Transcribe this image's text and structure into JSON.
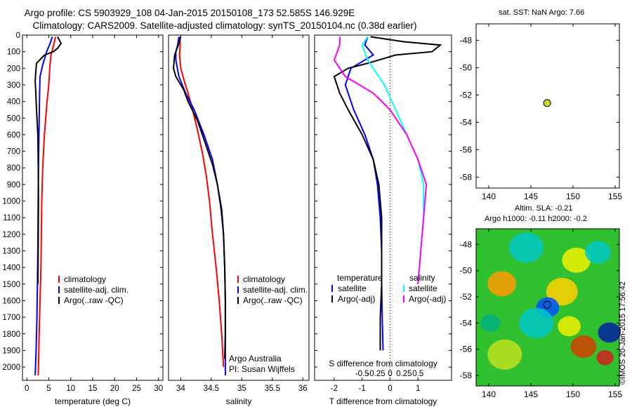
{
  "header": {
    "title_line1": "Argo profile: CS 5903929_108 04-Jan-2015 20150108_173 52.585S 146.929E",
    "title_line2": "Climatology: CARS2009. Satellite-adjusted climatology: synTS_20150104.nc (0.38d earlier)"
  },
  "colors": {
    "climatology": "#ff0000",
    "satellite": "#0000ff",
    "argo": "#000000",
    "sat_s": "#00ffff",
    "argo_s": "#ff00ff",
    "float_marker": "#ccdd22"
  },
  "chart_data": [
    {
      "id": "temperature",
      "type": "line",
      "xlabel": "temperature (deg C)",
      "ylabel": "",
      "xlim": [
        -1,
        31
      ],
      "ylim": [
        2080,
        0
      ],
      "y_reversed": true,
      "xticks": [
        0,
        5,
        10,
        15,
        20,
        25,
        30
      ],
      "yticks": [
        0,
        100,
        200,
        300,
        400,
        500,
        600,
        700,
        800,
        900,
        1000,
        1100,
        1200,
        1300,
        1400,
        1500,
        1600,
        1700,
        1800,
        1900,
        2000
      ],
      "legend": [
        "climatology",
        "satellite-adj. clim.",
        "Argo(..raw -QC)"
      ],
      "series": [
        {
          "name": "climatology",
          "color": "#ff0000",
          "points": [
            [
              6.5,
              10
            ],
            [
              6.2,
              50
            ],
            [
              5.5,
              120
            ],
            [
              5.2,
              200
            ],
            [
              5.0,
              300
            ],
            [
              4.6,
              400
            ],
            [
              4.3,
              500
            ],
            [
              4.0,
              600
            ],
            [
              3.8,
              700
            ],
            [
              3.6,
              800
            ],
            [
              3.5,
              900
            ],
            [
              3.4,
              1000
            ],
            [
              3.3,
              1200
            ],
            [
              3.2,
              1400
            ],
            [
              3.0,
              1600
            ],
            [
              2.8,
              1800
            ],
            [
              2.6,
              2050
            ]
          ]
        },
        {
          "name": "satellite-adj. clim.",
          "color": "#0000ff",
          "points": [
            [
              5.8,
              10
            ],
            [
              5.3,
              50
            ],
            [
              4.5,
              100
            ],
            [
              3.6,
              180
            ],
            [
              3.0,
              250
            ],
            [
              2.9,
              350
            ],
            [
              2.8,
              500
            ],
            [
              2.7,
              700
            ],
            [
              2.6,
              900
            ],
            [
              2.55,
              1100
            ],
            [
              2.5,
              1300
            ],
            [
              2.4,
              1500
            ],
            [
              2.3,
              1700
            ],
            [
              2.1,
              1900
            ],
            [
              1.9,
              2050
            ]
          ]
        },
        {
          "name": "Argo(..raw -QC)",
          "color": "#000000",
          "points": [
            [
              7.0,
              10
            ],
            [
              7.8,
              50
            ],
            [
              7.0,
              80
            ],
            [
              6.0,
              100
            ],
            [
              4.0,
              120
            ],
            [
              2.2,
              170
            ],
            [
              2.0,
              230
            ],
            [
              1.9,
              280
            ],
            [
              2.0,
              330
            ],
            [
              2.2,
              450
            ],
            [
              2.5,
              600
            ],
            [
              2.6,
              800
            ],
            [
              2.65,
              1000
            ],
            [
              2.6,
              1200
            ],
            [
              2.55,
              1400
            ],
            [
              2.5,
              1500
            ]
          ]
        }
      ]
    },
    {
      "id": "salinity",
      "type": "line",
      "xlabel": "salinity",
      "ylabel": "",
      "xlim": [
        33.8,
        36.1
      ],
      "ylim": [
        2080,
        0
      ],
      "y_reversed": true,
      "xticks": [
        34,
        34.5,
        35,
        35.5,
        36
      ],
      "xticklabels": [
        "34",
        "34.5",
        "35",
        "35.5",
        "36"
      ],
      "legend": [
        "climatology",
        "satellite-adj. clim.",
        "Argo(..raw -QC)"
      ],
      "annotations": [
        "Argo Australia",
        "PI: Susan Wijffels"
      ],
      "series": [
        {
          "name": "climatology",
          "color": "#ff0000",
          "points": [
            [
              33.99,
              10
            ],
            [
              33.99,
              60
            ],
            [
              33.98,
              120
            ],
            [
              34.0,
              200
            ],
            [
              34.06,
              280
            ],
            [
              34.16,
              400
            ],
            [
              34.26,
              550
            ],
            [
              34.35,
              700
            ],
            [
              34.42,
              850
            ],
            [
              34.47,
              1000
            ],
            [
              34.52,
              1200
            ],
            [
              34.58,
              1400
            ],
            [
              34.63,
              1600
            ],
            [
              34.67,
              1800
            ],
            [
              34.7,
              2000
            ]
          ]
        },
        {
          "name": "satellite-adj. clim.",
          "color": "#0000ff",
          "points": [
            [
              33.97,
              10
            ],
            [
              33.95,
              60
            ],
            [
              33.92,
              100
            ],
            [
              33.92,
              150
            ],
            [
              33.97,
              250
            ],
            [
              34.08,
              350
            ],
            [
              34.22,
              450
            ],
            [
              34.38,
              600
            ],
            [
              34.52,
              750
            ],
            [
              34.6,
              900
            ],
            [
              34.66,
              1050
            ],
            [
              34.7,
              1200
            ],
            [
              34.72,
              1400
            ],
            [
              34.73,
              1600
            ],
            [
              34.73,
              1800
            ],
            [
              34.73,
              2050
            ]
          ]
        },
        {
          "name": "Argo(..raw -QC)",
          "color": "#000000",
          "points": [
            [
              34.0,
              10
            ],
            [
              33.96,
              60
            ],
            [
              33.9,
              120
            ],
            [
              33.88,
              200
            ],
            [
              33.92,
              250
            ],
            [
              34.05,
              330
            ],
            [
              34.12,
              400
            ],
            [
              34.28,
              520
            ],
            [
              34.4,
              650
            ],
            [
              34.52,
              780
            ],
            [
              34.6,
              900
            ],
            [
              34.67,
              1050
            ],
            [
              34.7,
              1200
            ],
            [
              34.72,
              1400
            ],
            [
              34.73,
              1600
            ],
            [
              34.73,
              1800
            ],
            [
              34.72,
              1950
            ]
          ]
        }
      ]
    },
    {
      "id": "differences",
      "type": "line",
      "xlabel": "T difference from climatology",
      "xlabel_top": "S difference from climatology",
      "xlim": [
        -2.7,
        2.2
      ],
      "ylim": [
        2080,
        0
      ],
      "y_reversed": true,
      "xticks": [
        -2,
        -1,
        0,
        1
      ],
      "xticklabels": [
        "-2",
        "-1",
        "0",
        "1"
      ],
      "s_ticklabels": [
        "-0.5",
        "-0.25",
        "0",
        "0.25",
        "0.5"
      ],
      "legend_left_title": "temperature",
      "legend_left": [
        "satellite",
        "Argo(-adj)"
      ],
      "legend_right_title": "salinity",
      "legend_right": [
        "satellite",
        "Argo(-adj)"
      ],
      "series": [
        {
          "name": "satellite",
          "group": "temperature",
          "color": "#0000ff",
          "points": [
            [
              -0.8,
              10
            ],
            [
              -0.9,
              60
            ],
            [
              -0.6,
              120
            ],
            [
              -1.4,
              200
            ],
            [
              -1.6,
              300
            ],
            [
              -1.3,
              450
            ],
            [
              -0.9,
              600
            ],
            [
              -0.6,
              750
            ],
            [
              -0.45,
              900
            ],
            [
              -0.35,
              1100
            ],
            [
              -0.3,
              1300
            ],
            [
              -0.3,
              1500
            ],
            [
              -0.28,
              1700
            ],
            [
              -0.25,
              1900
            ]
          ]
        },
        {
          "name": "Argo(-adj)",
          "group": "temperature",
          "color": "#000000",
          "points": [
            [
              -0.7,
              10
            ],
            [
              0.5,
              40
            ],
            [
              1.8,
              60
            ],
            [
              1.5,
              100
            ],
            [
              0.2,
              120
            ],
            [
              -0.8,
              170
            ],
            [
              -1.5,
              200
            ],
            [
              -2.0,
              250
            ],
            [
              -1.8,
              350
            ],
            [
              -1.5,
              450
            ],
            [
              -1.0,
              600
            ],
            [
              -0.6,
              750
            ],
            [
              -0.4,
              900
            ],
            [
              -0.3,
              1100
            ],
            [
              -0.3,
              1300
            ],
            [
              -0.3,
              1500
            ],
            [
              -0.35,
              1700
            ],
            [
              -0.35,
              1900
            ]
          ]
        },
        {
          "name": "satellite",
          "group": "salinity",
          "color": "#00ffff",
          "points": [
            [
              -0.4,
              10
            ],
            [
              -0.5,
              60
            ],
            [
              -0.4,
              150
            ],
            [
              -0.1,
              300
            ],
            [
              0.1,
              450
            ],
            [
              0.3,
              600
            ],
            [
              0.5,
              750
            ],
            [
              0.6,
              900
            ],
            [
              0.6,
              1100
            ],
            [
              0.55,
              1300
            ],
            [
              0.5,
              1500
            ]
          ]
        },
        {
          "name": "Argo(-adj)",
          "group": "salinity",
          "color": "#ff00ff",
          "points": [
            [
              -0.9,
              10
            ],
            [
              -0.9,
              60
            ],
            [
              -1.0,
              150
            ],
            [
              -0.8,
              250
            ],
            [
              -0.3,
              350
            ],
            [
              0.0,
              450
            ],
            [
              0.3,
              600
            ],
            [
              0.5,
              750
            ],
            [
              0.65,
              900
            ],
            [
              0.6,
              1100
            ],
            [
              0.55,
              1300
            ],
            [
              0.5,
              1500
            ]
          ]
        }
      ]
    },
    {
      "id": "location",
      "type": "scatter",
      "title": "sat. SST: NaN Argo: 7.66",
      "xlim": [
        138.5,
        155.5
      ],
      "ylim": [
        -58.8,
        -46.8
      ],
      "xticks": [
        140,
        145,
        150,
        155
      ],
      "yticks": [
        -48,
        -50,
        -52,
        -54,
        -56,
        -58
      ],
      "points": [
        [
          146.93,
          -52.59
        ]
      ]
    },
    {
      "id": "altimetry",
      "type": "heatmap",
      "title_line1": "Altim. SLA: -0.21",
      "title_line2": "Argo h1000: -0.11 h2000: -0.2",
      "side_label": "©IMOS 20-Jan-2015 17:56:42",
      "xlim": [
        138.5,
        155.5
      ],
      "ylim": [
        -58.8,
        -46.8
      ],
      "xticks": [
        140,
        145,
        150,
        155
      ],
      "yticks": [
        -48,
        -50,
        -52,
        -54,
        -56,
        -58
      ],
      "points": [
        [
          146.93,
          -52.59
        ]
      ],
      "field_note_colors": [
        "#0000a0",
        "#00c8c8",
        "#20c020",
        "#f0f000",
        "#ff8000",
        "#c00000"
      ]
    }
  ]
}
